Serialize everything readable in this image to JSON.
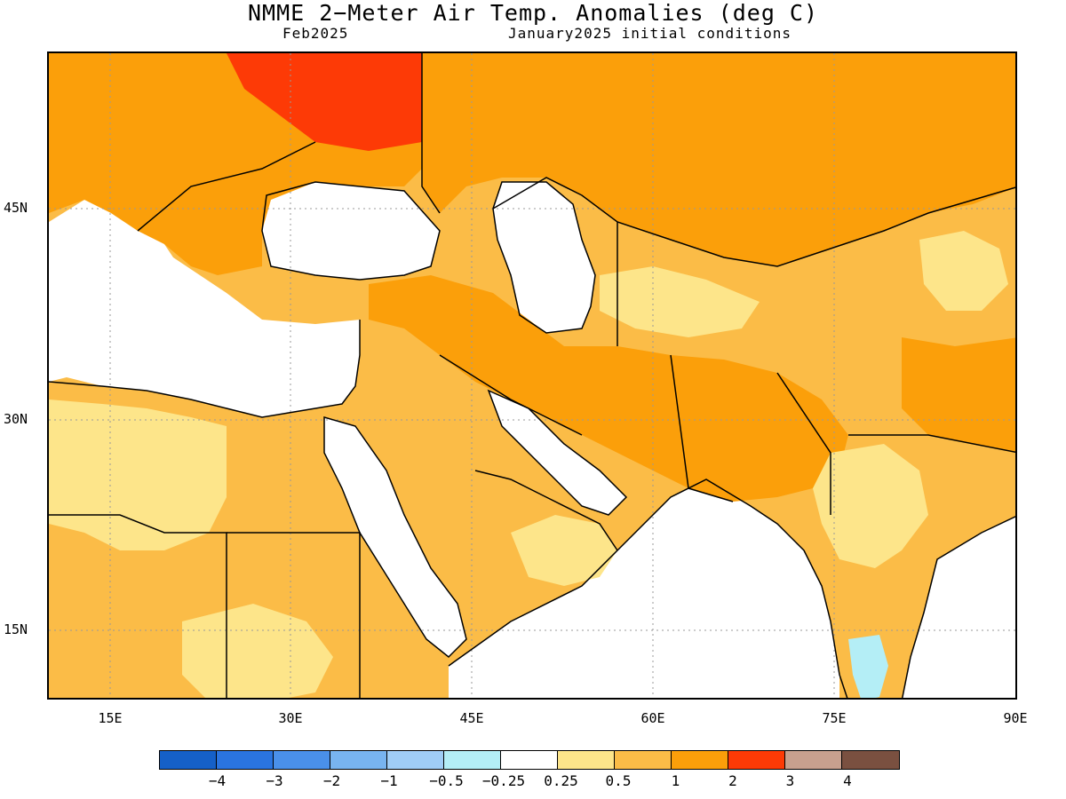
{
  "title": "NMME 2−Meter Air Temp. Anomalies (deg C)",
  "subtitle_left": "Feb2025",
  "subtitle_right": "January2025 initial conditions",
  "map": {
    "lon_labels": [
      "15E",
      "30E",
      "45E",
      "60E",
      "75E",
      "90E"
    ],
    "lat_labels": [
      "45N",
      "30N",
      "15N"
    ],
    "regions": [
      "sea",
      "europe-anomaly-1to2",
      "russia-anomaly-2to3",
      "caspian-region-0.5to1",
      "arabia-anomaly-0.5to1",
      "iran-anomaly-1to2",
      "central-asia-anomaly-1to2",
      "india-anomaly-0.5to1",
      "south-india-anomaly-negative"
    ]
  },
  "colorbar": {
    "colors": [
      "#1560c8",
      "#2a74e0",
      "#4a90ea",
      "#78b4f0",
      "#a0cdf6",
      "#b4eef6",
      "#ffffff",
      "#fde58a",
      "#fbbc47",
      "#fb9f0a",
      "#fd3a06",
      "#c8a08e",
      "#7a5040"
    ],
    "labels": [
      "−4",
      "−3",
      "−2",
      "−1",
      "−0.5",
      "−0.25",
      "0.25",
      "0.5",
      "1",
      "2",
      "3",
      "4"
    ]
  }
}
